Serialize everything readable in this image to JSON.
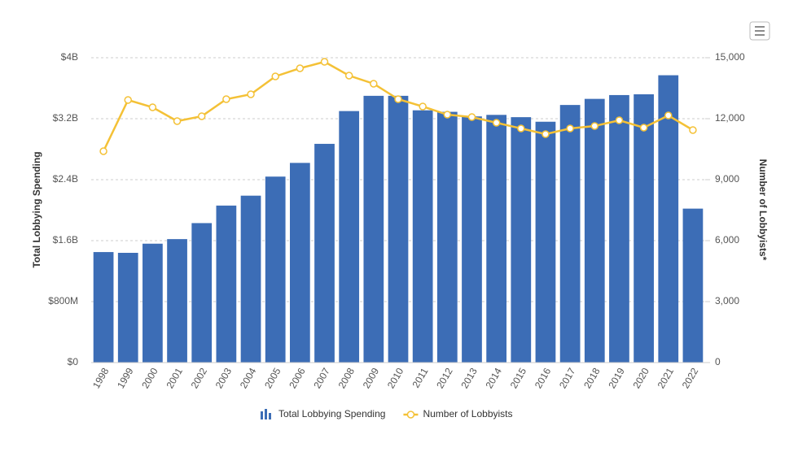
{
  "chart_data": {
    "type": "bar-line",
    "y_label": "Total Lobbying Spending",
    "y2_label": "Number of Lobbyists*",
    "categories": [
      "1998",
      "1999",
      "2000",
      "2001",
      "2002",
      "2003",
      "2004",
      "2005",
      "2006",
      "2007",
      "2008",
      "2009",
      "2010",
      "2011",
      "2012",
      "2013",
      "2014",
      "2015",
      "2016",
      "2017",
      "2018",
      "2019",
      "2020",
      "2021",
      "2022"
    ],
    "series": [
      {
        "name": "Total Lobbying Spending",
        "type": "bar",
        "color": "#3c6db6",
        "values": [
          1450000000,
          1440000000,
          1560000000,
          1620000000,
          1830000000,
          2060000000,
          2190000000,
          2440000000,
          2620000000,
          2870000000,
          3300000000,
          3500000000,
          3500000000,
          3310000000,
          3290000000,
          3230000000,
          3250000000,
          3220000000,
          3160000000,
          3380000000,
          3460000000,
          3510000000,
          3520000000,
          3770000000,
          2020000000
        ]
      },
      {
        "name": "Number of Lobbyists",
        "type": "line",
        "axis": "y2",
        "color": "#f4c136",
        "values": [
          10400,
          12920,
          12560,
          11880,
          12120,
          12960,
          13200,
          14080,
          14480,
          14800,
          14120,
          13720,
          12960,
          12600,
          12200,
          12080,
          11800,
          11520,
          11240,
          11520,
          11640,
          11920,
          11560,
          12160,
          11440
        ]
      }
    ],
    "ylim": [
      0,
      4000000000
    ],
    "yticks": [
      {
        "value": 0,
        "label": "$0"
      },
      {
        "value": 800000000,
        "label": "$800M"
      },
      {
        "value": 1600000000,
        "label": "$1.6B"
      },
      {
        "value": 2400000000,
        "label": "$2.4B"
      },
      {
        "value": 3200000000,
        "label": "$3.2B"
      },
      {
        "value": 4000000000,
        "label": "$4B"
      }
    ],
    "y2lim": [
      0,
      15000
    ],
    "y2ticks": [
      0,
      {
        "value": 3000,
        "label": "3,000"
      },
      {
        "value": 6000,
        "label": "6,000"
      },
      {
        "value": 9000,
        "label": "9,000"
      },
      {
        "value": 12000,
        "label": "12,000"
      },
      {
        "value": 15000,
        "label": "15,000"
      }
    ],
    "grid": true
  }
}
